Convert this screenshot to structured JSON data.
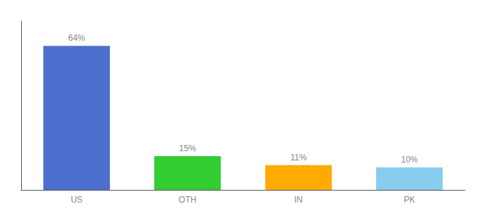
{
  "chart_data": {
    "type": "bar",
    "categories": [
      "US",
      "OTH",
      "IN",
      "PK"
    ],
    "values": [
      64,
      15,
      11,
      10
    ],
    "colors": [
      "#4c6fcd",
      "#33cc33",
      "#ffaa00",
      "#88ccee"
    ],
    "data_labels": true,
    "value_labels": [
      "64%",
      "15%",
      "11%",
      "10%"
    ],
    "ylim": [
      0,
      75
    ],
    "grid": false,
    "tick_labels": "x"
  }
}
